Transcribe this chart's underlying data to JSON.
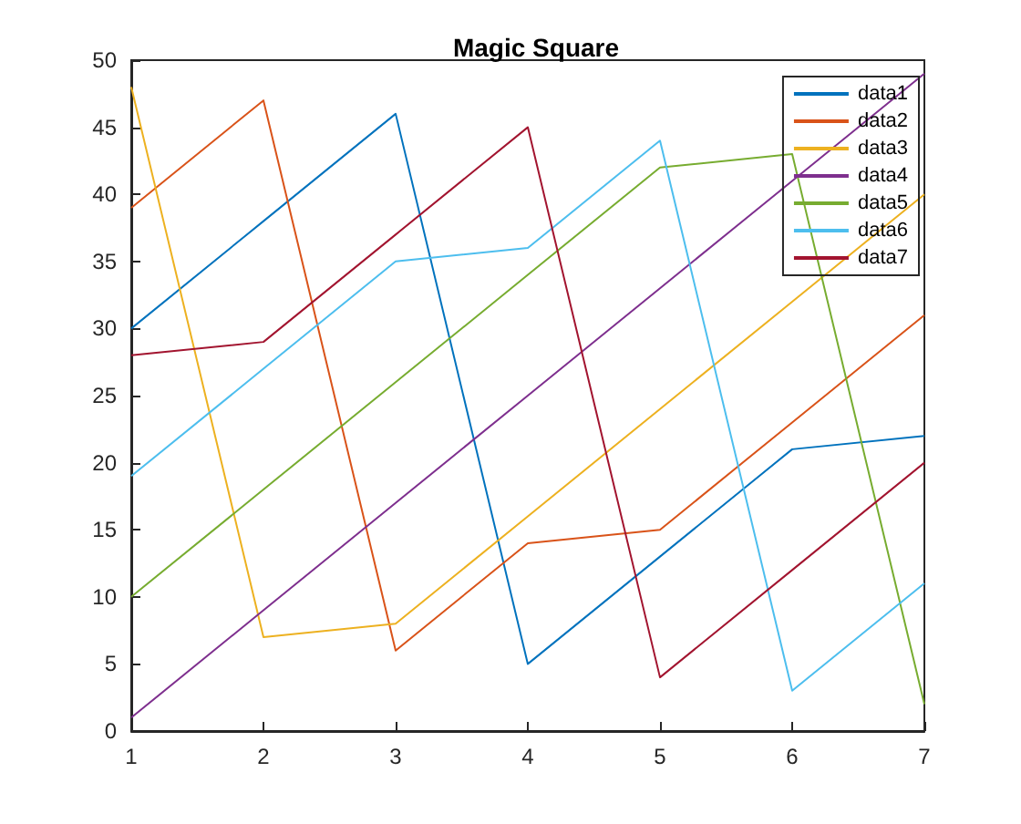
{
  "chart_data": {
    "type": "line",
    "title": "Magic Square",
    "x": [
      1,
      2,
      3,
      4,
      5,
      6,
      7
    ],
    "xlim": [
      1,
      7
    ],
    "xticks": [
      1,
      2,
      3,
      4,
      5,
      6,
      7
    ],
    "ylim": [
      0,
      50
    ],
    "yticks": [
      0,
      5,
      10,
      15,
      20,
      25,
      30,
      35,
      40,
      45,
      50
    ],
    "grid": false,
    "legend": "top right",
    "marker": "none",
    "line_style": "solid",
    "series": [
      {
        "name": "data1",
        "color": "#0072bd",
        "values": [
          30,
          38,
          46,
          5,
          13,
          21,
          22
        ]
      },
      {
        "name": "data2",
        "color": "#d95319",
        "values": [
          39,
          47,
          6,
          14,
          15,
          23,
          31
        ]
      },
      {
        "name": "data3",
        "color": "#edb120",
        "values": [
          48,
          7,
          8,
          16,
          24,
          32,
          40
        ]
      },
      {
        "name": "data4",
        "color": "#7e2f8e",
        "values": [
          1,
          9,
          17,
          25,
          33,
          41,
          49
        ]
      },
      {
        "name": "data5",
        "color": "#77ac30",
        "values": [
          10,
          18,
          26,
          34,
          42,
          43,
          2
        ]
      },
      {
        "name": "data6",
        "color": "#4dbeee",
        "values": [
          19,
          27,
          35,
          36,
          44,
          3,
          11
        ]
      },
      {
        "name": "data7",
        "color": "#a2142f",
        "values": [
          28,
          29,
          37,
          45,
          4,
          12,
          20
        ]
      }
    ]
  }
}
